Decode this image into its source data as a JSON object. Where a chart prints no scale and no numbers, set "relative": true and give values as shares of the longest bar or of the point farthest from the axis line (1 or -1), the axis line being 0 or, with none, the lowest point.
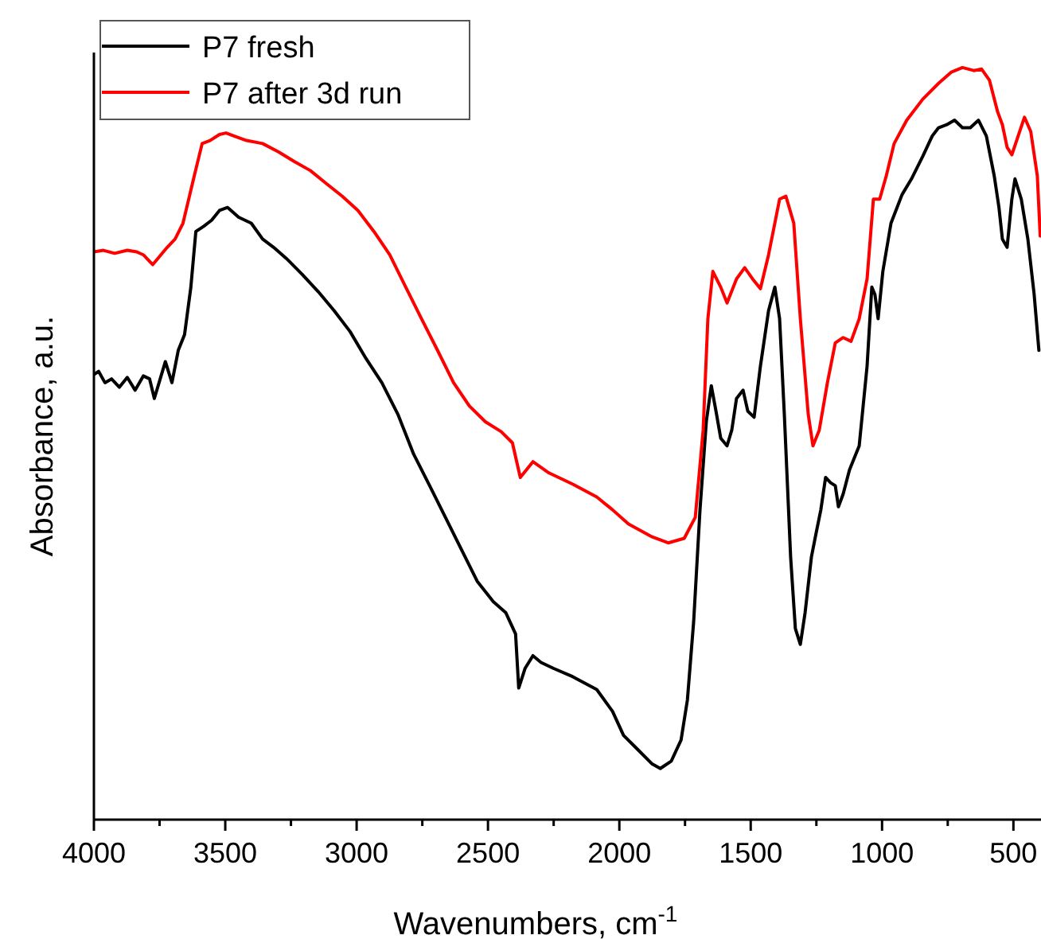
{
  "chart_data": {
    "type": "line",
    "relative": true,
    "xlabel": "Wavenumbers, cm$^{-1}$",
    "ylabel": "Absorbance, a.u.",
    "legend": "top left",
    "xlim": [
      4000,
      395
    ],
    "xticks": [
      4000,
      {
        "value": 3750,
        "label": null
      },
      3500,
      {
        "value": 3250,
        "label": null
      },
      3000,
      {
        "value": 2750,
        "label": null
      },
      2500,
      {
        "value": 2250,
        "label": null
      },
      2000,
      {
        "value": 1750,
        "label": null
      },
      1500,
      {
        "value": 1250,
        "label": null
      },
      1000,
      {
        "value": 750,
        "label": null
      },
      500
    ],
    "series": [
      {
        "name": "P7 fresh",
        "color": "#000000",
        "x": [
          4000,
          3982,
          3958,
          3933,
          3903,
          3873,
          3843,
          3812,
          3788,
          3770,
          3752,
          3728,
          3703,
          3679,
          3655,
          3631,
          3612,
          3582,
          3552,
          3522,
          3491,
          3449,
          3401,
          3358,
          3316,
          3267,
          3207,
          3146,
          3086,
          3025,
          2964,
          2904,
          2843,
          2783,
          2722,
          2662,
          2601,
          2541,
          2480,
          2432,
          2395,
          2383,
          2359,
          2329,
          2298,
          2250,
          2177,
          2086,
          2026,
          1984,
          1935,
          1875,
          1844,
          1802,
          1765,
          1741,
          1717,
          1693,
          1669,
          1650,
          1632,
          1614,
          1590,
          1572,
          1554,
          1529,
          1511,
          1487,
          1463,
          1432,
          1408,
          1390,
          1372,
          1348,
          1330,
          1311,
          1293,
          1269,
          1251,
          1233,
          1215,
          1196,
          1178,
          1166,
          1148,
          1124,
          1087,
          1057,
          1039,
          1027,
          1015,
          997,
          966,
          924,
          888,
          845,
          809,
          785,
          754,
          724,
          694,
          664,
          633,
          603,
          573,
          555,
          542,
          524,
          506,
          494,
          470,
          445,
          421,
          403
        ],
        "values": [
          0.592,
          0.596,
          0.581,
          0.586,
          0.575,
          0.588,
          0.571,
          0.59,
          0.586,
          0.56,
          0.581,
          0.609,
          0.581,
          0.624,
          0.645,
          0.708,
          0.782,
          0.789,
          0.797,
          0.81,
          0.814,
          0.801,
          0.793,
          0.772,
          0.761,
          0.746,
          0.725,
          0.702,
          0.677,
          0.649,
          0.613,
          0.581,
          0.539,
          0.486,
          0.444,
          0.402,
          0.359,
          0.317,
          0.29,
          0.275,
          0.247,
          0.175,
          0.201,
          0.218,
          0.209,
          0.201,
          0.19,
          0.173,
          0.144,
          0.112,
          0.095,
          0.074,
          0.068,
          0.078,
          0.106,
          0.159,
          0.264,
          0.412,
          0.529,
          0.577,
          0.543,
          0.507,
          0.497,
          0.518,
          0.56,
          0.571,
          0.543,
          0.535,
          0.603,
          0.677,
          0.708,
          0.666,
          0.539,
          0.349,
          0.254,
          0.233,
          0.275,
          0.349,
          0.381,
          0.412,
          0.455,
          0.448,
          0.444,
          0.416,
          0.433,
          0.465,
          0.497,
          0.603,
          0.708,
          0.698,
          0.666,
          0.729,
          0.793,
          0.831,
          0.852,
          0.882,
          0.909,
          0.92,
          0.924,
          0.93,
          0.92,
          0.92,
          0.93,
          0.909,
          0.856,
          0.814,
          0.772,
          0.761,
          0.825,
          0.852,
          0.825,
          0.772,
          0.698,
          0.624
        ]
      },
      {
        "name": "P7 after 3d run",
        "color": "#ff0000",
        "x": [
          4000,
          3964,
          3921,
          3873,
          3837,
          3812,
          3776,
          3752,
          3721,
          3691,
          3661,
          3618,
          3588,
          3558,
          3522,
          3497,
          3467,
          3419,
          3358,
          3298,
          3237,
          3176,
          3116,
          3055,
          2995,
          2934,
          2874,
          2813,
          2753,
          2692,
          2631,
          2571,
          2510,
          2450,
          2407,
          2377,
          2329,
          2268,
          2177,
          2086,
          2026,
          1965,
          1875,
          1814,
          1753,
          1711,
          1681,
          1663,
          1644,
          1614,
          1590,
          1554,
          1523,
          1493,
          1463,
          1432,
          1390,
          1366,
          1336,
          1311,
          1281,
          1263,
          1239,
          1208,
          1178,
          1148,
          1118,
          1087,
          1057,
          1033,
          1009,
          984,
          954,
          906,
          845,
          785,
          736,
          694,
          651,
          621,
          591,
          560,
          542,
          524,
          506,
          482,
          458,
          434,
          409,
          398
        ],
        "values": [
          0.755,
          0.757,
          0.753,
          0.757,
          0.755,
          0.751,
          0.738,
          0.748,
          0.761,
          0.772,
          0.793,
          0.856,
          0.899,
          0.903,
          0.911,
          0.913,
          0.909,
          0.903,
          0.899,
          0.888,
          0.875,
          0.863,
          0.846,
          0.829,
          0.81,
          0.782,
          0.751,
          0.708,
          0.666,
          0.624,
          0.581,
          0.55,
          0.529,
          0.516,
          0.501,
          0.455,
          0.476,
          0.461,
          0.446,
          0.429,
          0.412,
          0.393,
          0.376,
          0.368,
          0.374,
          0.402,
          0.518,
          0.666,
          0.729,
          0.708,
          0.687,
          0.719,
          0.734,
          0.719,
          0.706,
          0.751,
          0.825,
          0.829,
          0.793,
          0.666,
          0.539,
          0.497,
          0.518,
          0.581,
          0.634,
          0.641,
          0.636,
          0.666,
          0.719,
          0.825,
          0.825,
          0.856,
          0.899,
          0.93,
          0.958,
          0.979,
          0.994,
          1,
          0.996,
          0.998,
          0.983,
          0.941,
          0.924,
          0.894,
          0.884,
          0.909,
          0.934,
          0.915,
          0.856,
          0.776
        ]
      }
    ]
  }
}
